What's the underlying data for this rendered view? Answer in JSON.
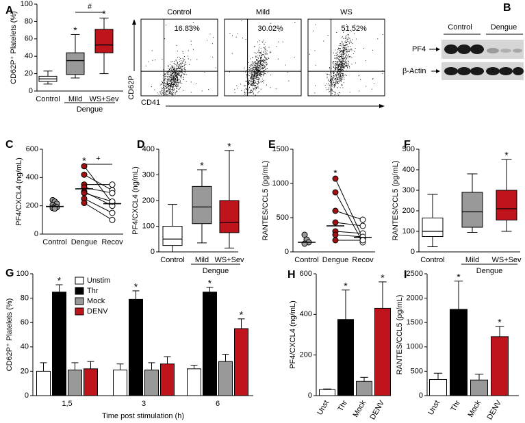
{
  "chart_data": [
    {
      "type": "box",
      "panel": "A",
      "y_label": "CD62P⁺ Platelets (%)",
      "categories": [
        "Control",
        "Mild",
        "WS+Sev"
      ],
      "boxes": [
        {
          "min": 8,
          "q1": 11,
          "median": 14,
          "q3": 17,
          "max": 23
        },
        {
          "min": 15,
          "q1": 19,
          "median": 35,
          "q3": 44,
          "max": 65
        },
        {
          "min": 20,
          "q1": 44,
          "median": 53,
          "q3": 71,
          "max": 84
        }
      ],
      "colors": [
        "#ffffff",
        "#999999",
        "#c0141c"
      ],
      "significance": [
        null,
        "*",
        "*"
      ],
      "comparisons": [
        {
          "label": "#",
          "categories": [
            "Mild",
            "WS+Sev"
          ]
        }
      ],
      "group_labels": [
        {
          "label": "Dengue",
          "categories": [
            "Mild",
            "WS+Sev"
          ]
        }
      ],
      "ylim": [
        0,
        100
      ],
      "yticks": [
        0,
        20,
        40,
        60,
        80,
        100
      ]
    },
    {
      "type": "dot",
      "panel": "C",
      "y_label": "PF4/CXCL4 (ng/mL)",
      "categories": [
        "Control",
        "Dengue",
        "Recov"
      ],
      "points": [
        [
          240,
          230,
          215,
          205,
          195,
          190,
          185,
          180
        ],
        [
          480,
          420,
          350,
          330,
          300,
          290,
          250,
          220
        ],
        [
          220,
          310,
          350,
          290,
          200,
          230,
          150,
          100
        ]
      ],
      "means": [
        195,
        320,
        215
      ],
      "colors": [
        "#999999",
        "#a01010",
        "#ffffff"
      ],
      "paired": [
        "Dengue",
        "Recov"
      ],
      "significance": [
        null,
        "*",
        null
      ],
      "comparisons": [
        {
          "label": "+",
          "categories": [
            "Dengue",
            "Recov"
          ]
        }
      ],
      "ylim": [
        0,
        600
      ],
      "yticks": [
        0,
        200,
        400,
        600
      ]
    },
    {
      "type": "box",
      "panel": "D",
      "y_label": "PF4/CXCL4 (ng/mL)",
      "categories": [
        "Control",
        "Mild",
        "WS+Sev"
      ],
      "boxes": [
        {
          "min": 0,
          "q1": 25,
          "median": 50,
          "q3": 100,
          "max": 185
        },
        {
          "min": 35,
          "q1": 110,
          "median": 175,
          "q3": 255,
          "max": 320
        },
        {
          "min": 15,
          "q1": 75,
          "median": 115,
          "q3": 200,
          "max": 395
        }
      ],
      "colors": [
        "#ffffff",
        "#999999",
        "#c0141c"
      ],
      "significance": [
        null,
        "*",
        "*"
      ],
      "group_labels": [
        {
          "label": "Dengue",
          "categories": [
            "Mild",
            "WS+Sev"
          ]
        }
      ],
      "ylim": [
        0,
        400
      ],
      "yticks": [
        0,
        100,
        200,
        300,
        400
      ]
    },
    {
      "type": "dot",
      "panel": "E",
      "y_label": "RANTES/CCL5 (pg/mL)",
      "categories": [
        "Control",
        "Dengue",
        "Recov"
      ],
      "points": [
        [
          250,
          180,
          140,
          120
        ],
        [
          1070,
          870,
          600,
          430,
          300,
          250,
          170
        ],
        [
          200,
          140,
          470,
          380,
          270,
          220,
          170
        ]
      ],
      "means": [
        140,
        380,
        210
      ],
      "colors": [
        "#999999",
        "#a01010",
        "#ffffff"
      ],
      "paired": [
        "Dengue",
        "Recov"
      ],
      "significance": [
        null,
        "*",
        null
      ],
      "ylim": [
        0,
        1500
      ],
      "yticks": [
        0,
        500,
        1000,
        1500
      ]
    },
    {
      "type": "box",
      "panel": "F",
      "y_label": "RANTES/CCL5 (pg/mL)",
      "categories": [
        "Control",
        "Mild",
        "WS+Sev"
      ],
      "boxes": [
        {
          "min": 25,
          "q1": 75,
          "median": 100,
          "q3": 165,
          "max": 280
        },
        {
          "min": 95,
          "q1": 120,
          "median": 195,
          "q3": 290,
          "max": 380
        },
        {
          "min": 100,
          "q1": 155,
          "median": 210,
          "q3": 300,
          "max": 450
        }
      ],
      "colors": [
        "#ffffff",
        "#999999",
        "#c0141c"
      ],
      "significance": [
        null,
        null,
        "*"
      ],
      "group_labels": [
        {
          "label": "Dengue",
          "categories": [
            "Mild",
            "WS+Sev"
          ]
        }
      ],
      "ylim": [
        0,
        500
      ],
      "yticks": [
        0,
        100,
        200,
        300,
        400,
        500
      ]
    },
    {
      "type": "bar",
      "panel": "G",
      "y_label": "CD62P⁺ Platelets (%)",
      "x_label": "Time post stimulation (h)",
      "categories": [
        "1,5",
        "3",
        "6"
      ],
      "series": [
        {
          "name": "Unstim",
          "color": "#ffffff",
          "values": [
            20,
            21,
            22
          ],
          "errors": [
            7,
            5,
            3
          ],
          "significance": [
            null,
            null,
            null
          ]
        },
        {
          "name": "Thr",
          "color": "#000000",
          "values": [
            85,
            79,
            85
          ],
          "errors": [
            6,
            7,
            4
          ],
          "significance": [
            "*",
            "*",
            "*"
          ]
        },
        {
          "name": "Mock",
          "color": "#999999",
          "values": [
            21,
            21,
            28
          ],
          "errors": [
            6,
            6,
            6
          ],
          "significance": [
            null,
            null,
            null
          ]
        },
        {
          "name": "DENV",
          "color": "#c0141c",
          "values": [
            22,
            26,
            55
          ],
          "errors": [
            6,
            6,
            8
          ],
          "significance": [
            null,
            null,
            "*"
          ]
        }
      ],
      "ylim": [
        0,
        100
      ],
      "yticks": [
        0,
        20,
        40,
        60,
        80,
        100
      ]
    },
    {
      "type": "bar",
      "panel": "H",
      "y_label": "PF4/CXCL4 (ng/mL)",
      "categories": [
        "Unst",
        "Thr",
        "Mock",
        "DENV"
      ],
      "values": [
        30,
        375,
        70,
        430
      ],
      "errors": [
        3,
        145,
        20,
        130
      ],
      "colors": [
        "#ffffff",
        "#000000",
        "#999999",
        "#c0141c"
      ],
      "significance": [
        null,
        "*",
        null,
        "*"
      ],
      "ylim": [
        0,
        600
      ],
      "yticks": [
        0,
        200,
        400,
        600
      ]
    },
    {
      "type": "bar",
      "panel": "I",
      "y_label": "RANTES/CCL5 (pg/mL)",
      "categories": [
        "Unst",
        "Thr",
        "Mock",
        "DENV"
      ],
      "values": [
        330,
        1770,
        320,
        1210
      ],
      "errors": [
        130,
        580,
        120,
        210
      ],
      "colors": [
        "#ffffff",
        "#000000",
        "#999999",
        "#c0141c"
      ],
      "significance": [
        null,
        "*",
        null,
        "*"
      ],
      "ylim": [
        0,
        2500
      ],
      "yticks": [
        0,
        500,
        1000,
        1500,
        2000,
        2500
      ]
    }
  ],
  "flow_cytometry": {
    "x_label": "CD41",
    "y_label": "CD62P",
    "panels": [
      {
        "title": "Control",
        "percent": "16.83%"
      },
      {
        "title": "Mild",
        "percent": "30.02%"
      },
      {
        "title": "WS",
        "percent": "51.52%"
      }
    ]
  },
  "western_blot": {
    "panel": "B",
    "groups": [
      "Control",
      "Dengue"
    ],
    "rows": [
      "PF4",
      "β-Actin"
    ]
  }
}
